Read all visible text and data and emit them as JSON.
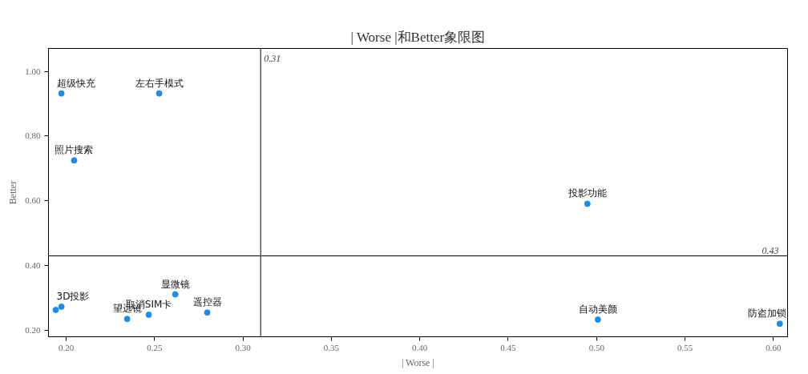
{
  "chart_data": {
    "type": "scatter",
    "title": "| Worse |和Better象限图",
    "xlabel": "| Worse |",
    "ylabel": "Better",
    "series": [
      {
        "color": "#1e8be8",
        "x": [
          0.1973,
          0.2526,
          0.2045,
          0.4948,
          0.1941,
          0.1973,
          0.2345,
          0.2467,
          0.2617,
          0.2798,
          0.5007,
          0.6036
        ],
        "values": [
          0.932,
          0.932,
          0.725,
          0.591,
          0.263,
          0.273,
          0.235,
          0.248,
          0.311,
          0.255,
          0.233,
          0.22
        ]
      }
    ],
    "annotations": [
      {
        "text": "超级快充",
        "x": 0.1973,
        "y": 0.932
      },
      {
        "text": "左右手模式",
        "x": 0.2526,
        "y": 0.932
      },
      {
        "text": "照片搜索",
        "x": 0.2045,
        "y": 0.725
      },
      {
        "text": "投影功能",
        "x": 0.4948,
        "y": 0.591
      },
      {
        "text": "3D投影",
        "x": 0.1973,
        "y": 0.273
      },
      {
        "text": "望远镜",
        "x": 0.2345,
        "y": 0.235
      },
      {
        "text": "取消SIM卡",
        "x": 0.2467,
        "y": 0.248
      },
      {
        "text": "显微镜",
        "x": 0.2617,
        "y": 0.311
      },
      {
        "text": "遥控器",
        "x": 0.2798,
        "y": 0.255
      },
      {
        "text": "自动美颜",
        "x": 0.5007,
        "y": 0.233
      },
      {
        "text": "防盗加锁",
        "x": 0.6036,
        "y": 0.22
      }
    ],
    "ref_lines": [
      {
        "axis": "x",
        "value": 0.31,
        "label": "0.31",
        "color": "#000000"
      },
      {
        "axis": "y",
        "value": 0.43,
        "label": "0.43",
        "color": "#000000"
      }
    ],
    "xlim": [
      0.19,
      0.608
    ],
    "ylim": [
      0.18,
      1.071
    ],
    "xticks": [
      {
        "value": 0.2,
        "label": "0.20"
      },
      {
        "value": 0.25,
        "label": "0.25"
      },
      {
        "value": 0.3,
        "label": "0.30"
      },
      {
        "value": 0.35,
        "label": "0.35"
      },
      {
        "value": 0.4,
        "label": "0.40"
      },
      {
        "value": 0.45,
        "label": "0.45"
      },
      {
        "value": 0.5,
        "label": "0.50"
      },
      {
        "value": 0.55,
        "label": "0.55"
      },
      {
        "value": 0.6,
        "label": "0.60"
      }
    ],
    "yticks": [
      {
        "value": 0.2,
        "label": "0.20"
      },
      {
        "value": 0.4,
        "label": "0.40"
      },
      {
        "value": 0.6,
        "label": "0.60"
      },
      {
        "value": 0.8,
        "label": "0.80"
      },
      {
        "value": 1.0,
        "label": "1.00"
      }
    ],
    "grid": false,
    "marker": "circle"
  }
}
